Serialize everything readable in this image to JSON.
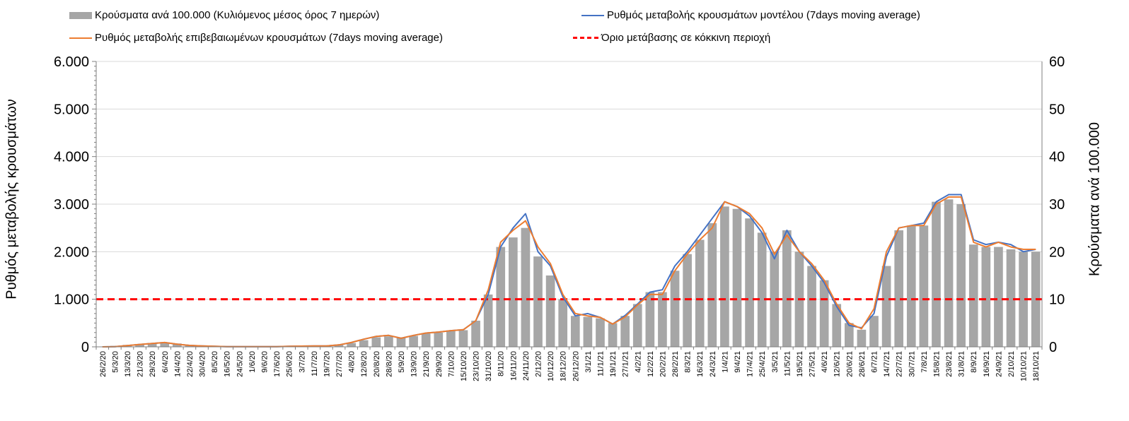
{
  "chart_data": {
    "type": "bar+line",
    "title": "",
    "ylabel_left": "Ρυθμός μεταβολής κρουσμάτων",
    "ylabel_right": "Κρούσματα ανά 100.000",
    "ylim_left": [
      0,
      6000
    ],
    "ylim_right": [
      0,
      60
    ],
    "yticks_left": [
      "0",
      "1.000",
      "2.000",
      "3.000",
      "4.000",
      "5.000",
      "6.000"
    ],
    "yticks_right": [
      "0",
      "10",
      "20",
      "30",
      "40",
      "50",
      "60"
    ],
    "grid": true,
    "legend": [
      {
        "label": "Κρούσματα ανά 100.000 (Κυλιόμενος μέσος όρος 7 ημερών)",
        "kind": "bar",
        "color": "#a6a6a6"
      },
      {
        "label": "Ρυθμός μεταβολής κρουσμάτων μοντέλου (7days moving average)",
        "kind": "line",
        "color": "#4472c4"
      },
      {
        "label": "Ρυθμός μεταβολής επιβεβαιωμένων κρουσμάτων (7days moving average)",
        "kind": "line",
        "color": "#ed7d31"
      },
      {
        "label": "Όριο μετάβασης σε κόκκινη περιοχή",
        "kind": "dashed",
        "color": "#ff0000"
      }
    ],
    "x_tick_labels": [
      "26/2/20",
      "5/3/20",
      "13/3/20",
      "21/3/20",
      "29/3/20",
      "6/4/20",
      "14/4/20",
      "22/4/20",
      "30/4/20",
      "8/5/20",
      "16/5/20",
      "24/5/20",
      "1/6/20",
      "9/6/20",
      "17/6/20",
      "25/6/20",
      "3/7/20",
      "11/7/20",
      "19/7/20",
      "27/7/20",
      "4/8/20",
      "12/8/20",
      "20/8/20",
      "28/8/20",
      "5/9/20",
      "13/9/20",
      "21/9/20",
      "29/9/20",
      "7/10/20",
      "15/10/20",
      "23/10/20",
      "31/10/20",
      "8/11/20",
      "16/11/20",
      "24/11/20",
      "2/12/20",
      "10/12/20",
      "18/12/20",
      "26/12/20",
      "3/1/21",
      "11/1/21",
      "19/1/21",
      "27/1/21",
      "4/2/21",
      "12/2/21",
      "20/2/21",
      "28/2/21",
      "8/3/21",
      "16/3/21",
      "24/3/21",
      "1/4/21",
      "9/4/21",
      "17/4/21",
      "25/4/21",
      "3/5/21",
      "11/5/21",
      "19/5/21",
      "27/5/21",
      "4/6/21",
      "12/6/21",
      "20/6/21",
      "28/6/21",
      "6/7/21",
      "14/7/21",
      "22/7/21",
      "30/7/21",
      "7/8/21",
      "15/8/21",
      "23/8/21",
      "31/8/21",
      "8/9/21",
      "16/9/21",
      "24/9/21",
      "2/10/21",
      "10/10/21",
      "18/10/21"
    ],
    "threshold_left": 1000,
    "series": [
      {
        "name": "Κρούσματα ανά 100.000 (Κυλιόμενος μέσος όρος 7 ημερών)",
        "axis": "right",
        "values": [
          0.0,
          0.2,
          0.4,
          0.6,
          0.8,
          0.8,
          0.7,
          0.4,
          0.3,
          0.2,
          0.1,
          0.1,
          0.1,
          0.1,
          0.1,
          0.1,
          0.1,
          0.2,
          0.2,
          0.4,
          0.8,
          1.4,
          2.0,
          2.2,
          2.0,
          2.3,
          2.8,
          3.0,
          3.3,
          3.5,
          5.5,
          11.0,
          21.0,
          23.0,
          25.0,
          19.0,
          15.0,
          10.0,
          6.5,
          6.3,
          6.0,
          5.0,
          6.5,
          9.0,
          11.5,
          11.5,
          16.0,
          19.5,
          22.5,
          26.0,
          29.5,
          29.0,
          27.0,
          24.0,
          20.0,
          24.5,
          20.0,
          17.0,
          14.0,
          9.0,
          5.0,
          3.6,
          6.5,
          17.0,
          24.5,
          25.5,
          25.5,
          30.5,
          31.0,
          30.0,
          21.5,
          21.0,
          21.0,
          20.5,
          20.0,
          20.0
        ]
      },
      {
        "name": "Ρυθμός μεταβολής κρουσμάτων μοντέλου (7days moving average)",
        "axis": "left",
        "color": "#4472c4",
        "values": [
          0,
          5,
          25,
          50,
          70,
          90,
          55,
          30,
          20,
          10,
          5,
          5,
          5,
          5,
          5,
          10,
          15,
          20,
          20,
          40,
          90,
          160,
          220,
          240,
          180,
          240,
          290,
          310,
          340,
          360,
          550,
          1100,
          2100,
          2500,
          2800,
          2000,
          1700,
          1050,
          650,
          700,
          620,
          480,
          660,
          900,
          1150,
          1200,
          1700,
          2000,
          2350,
          2700,
          3050,
          2950,
          2750,
          2400,
          1850,
          2450,
          2000,
          1700,
          1350,
          850,
          450,
          400,
          700,
          1900,
          2500,
          2550,
          2600,
          3050,
          3200,
          3200,
          2250,
          2150,
          2200,
          2150,
          2000,
          2050
        ]
      },
      {
        "name": "Ρυθμός μεταβολής επιβεβαιωμένων κρουσμάτων (7days moving average)",
        "axis": "left",
        "color": "#ed7d31",
        "values": [
          0,
          5,
          25,
          50,
          70,
          90,
          55,
          30,
          20,
          10,
          5,
          5,
          5,
          5,
          5,
          10,
          15,
          20,
          20,
          40,
          90,
          160,
          220,
          240,
          180,
          240,
          290,
          310,
          340,
          360,
          550,
          1200,
          2200,
          2450,
          2650,
          2100,
          1750,
          1100,
          700,
          650,
          620,
          480,
          630,
          880,
          1100,
          1100,
          1600,
          1950,
          2250,
          2500,
          3050,
          2950,
          2800,
          2500,
          1950,
          2350,
          2000,
          1750,
          1400,
          900,
          500,
          380,
          800,
          2000,
          2500,
          2550,
          2550,
          3000,
          3150,
          3150,
          2200,
          2100,
          2200,
          2100,
          2050,
          2050
        ]
      }
    ]
  }
}
